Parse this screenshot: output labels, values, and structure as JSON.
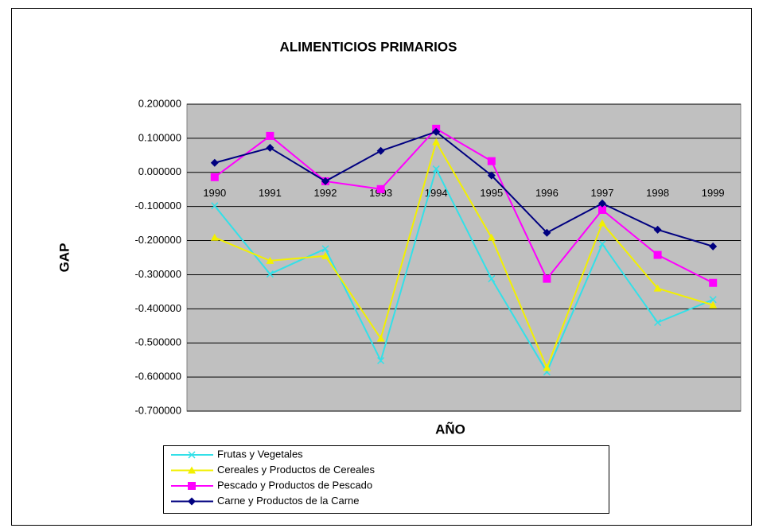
{
  "chart_data": {
    "type": "line",
    "title": "ALIMENTICIOS PRIMARIOS",
    "x_label": "AÑO",
    "y_label": "GAP",
    "categories": [
      "1990",
      "1991",
      "1992",
      "1993",
      "1994",
      "1995",
      "1996",
      "1997",
      "1998",
      "1999"
    ],
    "ylim": [
      -0.7,
      0.2
    ],
    "yticks": [
      {
        "value": 0.2,
        "label": "0.200000"
      },
      {
        "value": 0.1,
        "label": "0.100000"
      },
      {
        "value": 0,
        "label": "0.000000"
      },
      {
        "value": -0.1,
        "label": "-0.100000"
      },
      {
        "value": -0.2,
        "label": "-0.200000"
      },
      {
        "value": -0.3,
        "label": "-0.300000"
      },
      {
        "value": -0.4,
        "label": "-0.400000"
      },
      {
        "value": -0.5,
        "label": "-0.500000"
      },
      {
        "value": -0.6,
        "label": "-0.600000"
      },
      {
        "value": -0.7,
        "label": "-0.700000"
      }
    ],
    "grid": true,
    "series": [
      {
        "name": "Frutas y Vegetales",
        "color": "#33e0e8",
        "marker": "x",
        "values": [
          -0.098,
          -0.298,
          -0.224,
          -0.552,
          0.01,
          -0.312,
          -0.585,
          -0.21,
          -0.44,
          -0.373
        ]
      },
      {
        "name": "Cereales y Productos de Cereales",
        "color": "#f2f000",
        "marker": "triangle",
        "values": [
          -0.191,
          -0.259,
          -0.245,
          -0.487,
          0.089,
          -0.191,
          -0.573,
          -0.149,
          -0.34,
          -0.389
        ]
      },
      {
        "name": "Pescado y  Productos de Pescado",
        "color": "#ff00ff",
        "marker": "square",
        "values": [
          -0.014,
          0.107,
          -0.026,
          -0.049,
          0.128,
          0.033,
          -0.312,
          -0.11,
          -0.242,
          -0.324
        ]
      },
      {
        "name": "Carne y Productos de la Carne",
        "color": "#000080",
        "marker": "diamond",
        "values": [
          0.028,
          0.072,
          -0.026,
          0.063,
          0.119,
          -0.009,
          -0.177,
          -0.091,
          -0.168,
          -0.217
        ]
      }
    ]
  }
}
